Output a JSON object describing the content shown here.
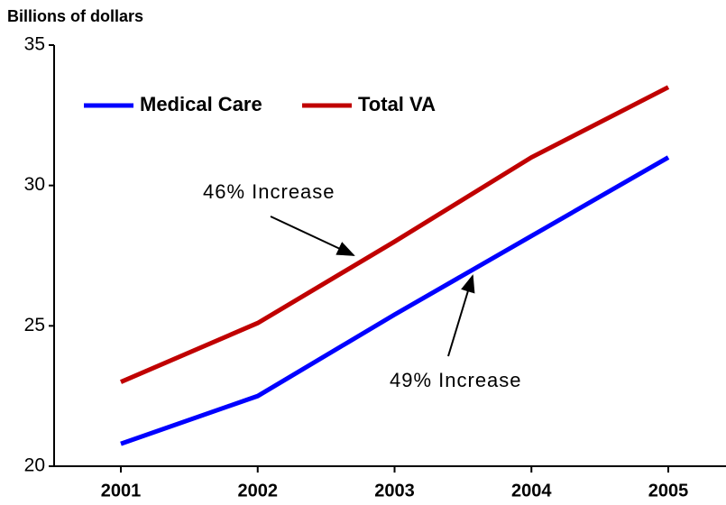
{
  "chart_data": {
    "type": "line",
    "y_axis_label": "Billions of dollars",
    "categories": [
      "2001",
      "2002",
      "2003",
      "2004",
      "2005"
    ],
    "series": [
      {
        "name": "Medical Care",
        "color": "#0000ff",
        "values": [
          20.8,
          22.5,
          25.4,
          28.2,
          31.0
        ]
      },
      {
        "name": "Total VA",
        "color": "#c00000",
        "values": [
          23.0,
          25.1,
          28.0,
          31.0,
          33.5
        ]
      }
    ],
    "annotations": [
      "46% Increase",
      "49% Increase"
    ],
    "ylim": [
      20,
      35
    ],
    "yticks": [
      20,
      25,
      30,
      35
    ],
    "grid": false,
    "legend": "top-left"
  }
}
